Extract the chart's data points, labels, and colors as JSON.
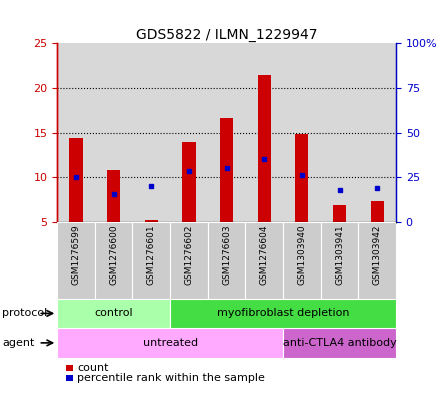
{
  "title": "GDS5822 / ILMN_1229947",
  "samples": [
    "GSM1276599",
    "GSM1276600",
    "GSM1276601",
    "GSM1276602",
    "GSM1276603",
    "GSM1276604",
    "GSM1303940",
    "GSM1303941",
    "GSM1303942"
  ],
  "count_values": [
    14.4,
    10.8,
    5.2,
    13.9,
    16.6,
    21.5,
    14.9,
    6.9,
    7.4
  ],
  "count_bottom": [
    5,
    5,
    5,
    5,
    5,
    5,
    5,
    5,
    5
  ],
  "percentile_values": [
    25.0,
    15.5,
    20.0,
    28.5,
    30.0,
    35.0,
    26.5,
    18.0,
    19.0
  ],
  "ylim_left": [
    5,
    25
  ],
  "ylim_right": [
    0,
    100
  ],
  "yticks_left": [
    5,
    10,
    15,
    20,
    25
  ],
  "yticks_right": [
    0,
    25,
    50,
    75,
    100
  ],
  "ytick_labels_left": [
    "5",
    "10",
    "15",
    "20",
    "25"
  ],
  "ytick_labels_right": [
    "0",
    "25",
    "50",
    "75",
    "100%"
  ],
  "bar_color": "#cc0000",
  "dot_color": "#0000cc",
  "bar_width": 0.35,
  "protocol_groups": [
    {
      "label": "control",
      "start": 0,
      "end": 3,
      "color": "#aaffaa"
    },
    {
      "label": "myofibroblast depletion",
      "start": 3,
      "end": 9,
      "color": "#44dd44"
    }
  ],
  "agent_groups": [
    {
      "label": "untreated",
      "start": 0,
      "end": 6,
      "color": "#ffaaff"
    },
    {
      "label": "anti-CTLA4 antibody",
      "start": 6,
      "end": 9,
      "color": "#cc66cc"
    }
  ],
  "legend_count_label": "count",
  "legend_pct_label": "percentile rank within the sample",
  "grid_color": "#000000",
  "tick_color_left": "#cc0000",
  "tick_color_right": "#0000cc",
  "plot_bg_color": "#d8d8d8",
  "xtick_bg_color": "#cccccc"
}
